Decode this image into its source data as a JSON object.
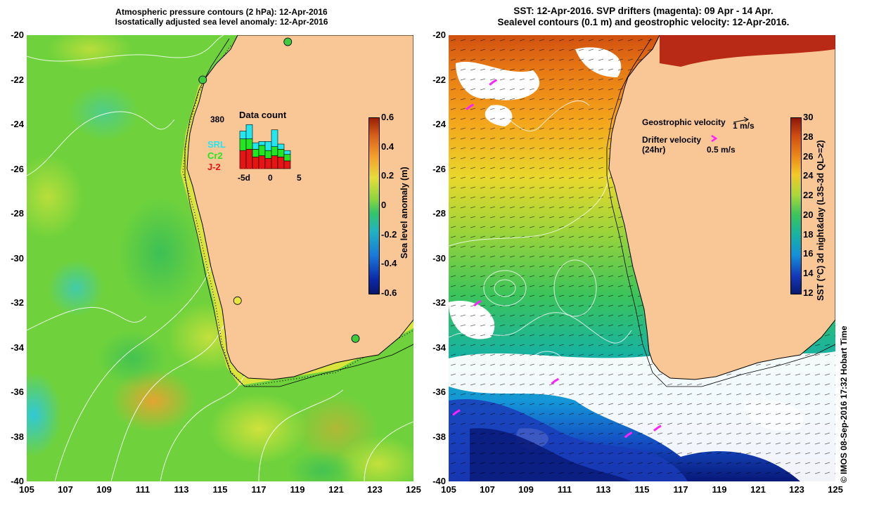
{
  "left_panel": {
    "title_line1": "Atmospheric pressure contours (2 hPa): 12-Apr-2016",
    "title_line2": "Isostatically adjusted sea level anomaly: 12-Apr-2016",
    "colorbar": {
      "label": "Sea level anomaly (m)",
      "ticks": [
        "0.6",
        "0.4",
        "0.2",
        "0",
        "-0.2",
        "-0.4",
        "-0.6"
      ]
    },
    "data_count": {
      "title": "Data count",
      "max": "380",
      "legend": [
        {
          "name": "SRL",
          "color": "#22e6f0"
        },
        {
          "name": "Cr2",
          "color": "#22e622"
        },
        {
          "name": "J-2",
          "color": "#e61414"
        }
      ],
      "axis_labels": [
        "-5d",
        "0",
        "5"
      ],
      "bars": [
        {
          "srl": 60,
          "cr2": 90,
          "j2": 140
        },
        {
          "srl": 110,
          "cr2": 80,
          "j2": 150
        },
        {
          "srl": 50,
          "cr2": 60,
          "j2": 90
        },
        {
          "srl": 30,
          "cr2": 80,
          "j2": 100
        },
        {
          "srl": 70,
          "cr2": 60,
          "j2": 80
        },
        {
          "srl": 130,
          "cr2": 70,
          "j2": 100
        },
        {
          "srl": 40,
          "cr2": 60,
          "j2": 90
        },
        {
          "srl": 30,
          "cr2": 50,
          "j2": 60
        }
      ]
    },
    "tide_gauges": [
      {
        "lon": 114.1,
        "lat": -22.0,
        "color": "#3ccc3c"
      },
      {
        "lon": 118.5,
        "lat": -20.3,
        "color": "#3ccc3c"
      },
      {
        "lon": 115.9,
        "lat": -31.9,
        "color": "#e6e63c"
      },
      {
        "lon": 122.0,
        "lat": -33.6,
        "color": "#3ccc3c"
      }
    ]
  },
  "right_panel": {
    "title_line1": "SST: 12-Apr-2016. SVP drifters (magenta): 09 Apr - 14 Apr.",
    "title_line2": "Sealevel contours (0.1 m) and geostrophic velocity: 12-Apr-2016.",
    "colorbar": {
      "label": "SST (°C) 3d night&day (L3S-3d QL>=2)",
      "ticks": [
        "30",
        "28",
        "26",
        "24",
        "22",
        "20",
        "18",
        "16",
        "14",
        "12"
      ]
    },
    "legend": {
      "geo_label": "Geostrophic velocity",
      "geo_scale": "1 m/s",
      "drifter_label": "Drifter velocity",
      "drifter_sub": "(24hr)",
      "drifter_scale": "0.5 m/s",
      "drifter_color": "#ff20ff"
    },
    "drifters": [
      {
        "lon": 107.3,
        "lat": -22.1
      },
      {
        "lon": 106.1,
        "lat": -23.2
      },
      {
        "lon": 106.5,
        "lat": -32.0
      },
      {
        "lon": 110.5,
        "lat": -35.5
      },
      {
        "lon": 105.4,
        "lat": -36.9
      },
      {
        "lon": 114.3,
        "lat": -37.9
      },
      {
        "lon": 115.8,
        "lat": -37.6
      }
    ]
  },
  "axes": {
    "y_ticks": [
      "-20",
      "-22",
      "-24",
      "-26",
      "-28",
      "-30",
      "-32",
      "-34",
      "-36",
      "-38",
      "-40"
    ],
    "x_ticks": [
      "105",
      "107",
      "109",
      "111",
      "113",
      "115",
      "117",
      "119",
      "121",
      "123",
      "125"
    ]
  },
  "credit": "© IMOS 08-Sep-2016 17:32 Hobart Time"
}
